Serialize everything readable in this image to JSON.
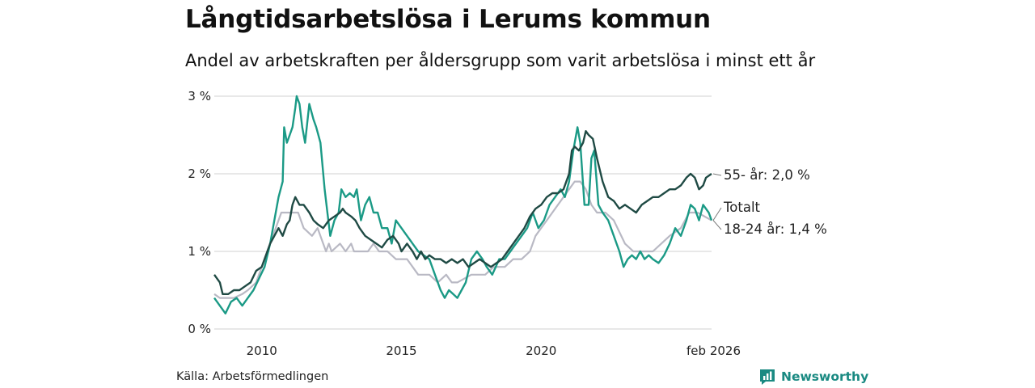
{
  "chart_data": {
    "type": "line",
    "title": "Långtidsarbetslösa i Lerums kommun",
    "subtitle": "Andel av arbetskraften per åldersgrupp som varit arbetslösa i minst ett år",
    "ylim": [
      0,
      3
    ],
    "y_ticks": [
      {
        "value": 0,
        "label": "0 %"
      },
      {
        "value": 1,
        "label": "1 %"
      },
      {
        "value": 2,
        "label": "2 %"
      },
      {
        "value": 3,
        "label": "3 %"
      }
    ],
    "x_range": [
      2008.3,
      2026.1
    ],
    "x_ticks": [
      {
        "value": 2010,
        "label": "2010"
      },
      {
        "value": 2015,
        "label": "2015"
      },
      {
        "value": 2020,
        "label": "2020"
      },
      {
        "value": 2026.1,
        "label": "feb 2026"
      }
    ],
    "grid": true,
    "series": [
      {
        "name": "Totalt",
        "end_label": "Totalt",
        "color": "#b9b9c4",
        "points": [
          [
            2008.3,
            0.45
          ],
          [
            2008.5,
            0.4
          ],
          [
            2009,
            0.4
          ],
          [
            2009.3,
            0.45
          ],
          [
            2009.5,
            0.5
          ],
          [
            2009.8,
            0.6
          ],
          [
            2010,
            0.8
          ],
          [
            2010.2,
            1.0
          ],
          [
            2010.3,
            1.1
          ],
          [
            2010.5,
            1.3
          ],
          [
            2010.7,
            1.5
          ],
          [
            2011,
            1.5
          ],
          [
            2011.3,
            1.5
          ],
          [
            2011.5,
            1.3
          ],
          [
            2011.8,
            1.2
          ],
          [
            2012,
            1.3
          ],
          [
            2012.2,
            1.1
          ],
          [
            2012.3,
            1.0
          ],
          [
            2012.4,
            1.1
          ],
          [
            2012.5,
            1.0
          ],
          [
            2012.8,
            1.1
          ],
          [
            2013,
            1.0
          ],
          [
            2013.2,
            1.1
          ],
          [
            2013.3,
            1.0
          ],
          [
            2013.8,
            1.0
          ],
          [
            2014,
            1.1
          ],
          [
            2014.2,
            1.0
          ],
          [
            2014.5,
            1.0
          ],
          [
            2014.8,
            0.9
          ],
          [
            2015,
            0.9
          ],
          [
            2015.2,
            0.9
          ],
          [
            2015.4,
            0.8
          ],
          [
            2015.6,
            0.7
          ],
          [
            2016,
            0.7
          ],
          [
            2016.3,
            0.6
          ],
          [
            2016.6,
            0.7
          ],
          [
            2016.8,
            0.6
          ],
          [
            2017,
            0.6
          ],
          [
            2017.5,
            0.7
          ],
          [
            2018,
            0.7
          ],
          [
            2018.3,
            0.8
          ],
          [
            2018.7,
            0.8
          ],
          [
            2019,
            0.9
          ],
          [
            2019.3,
            0.9
          ],
          [
            2019.6,
            1.0
          ],
          [
            2019.8,
            1.2
          ],
          [
            2020,
            1.3
          ],
          [
            2020.2,
            1.4
          ],
          [
            2020.4,
            1.5
          ],
          [
            2020.6,
            1.6
          ],
          [
            2020.8,
            1.7
          ],
          [
            2021,
            1.8
          ],
          [
            2021.2,
            1.9
          ],
          [
            2021.4,
            1.9
          ],
          [
            2021.6,
            1.8
          ],
          [
            2021.8,
            1.6
          ],
          [
            2022,
            1.5
          ],
          [
            2022.3,
            1.5
          ],
          [
            2022.6,
            1.4
          ],
          [
            2023,
            1.1
          ],
          [
            2023.3,
            1.0
          ],
          [
            2023.6,
            1.0
          ],
          [
            2024,
            1.0
          ],
          [
            2024.3,
            1.1
          ],
          [
            2024.6,
            1.2
          ],
          [
            2025,
            1.3
          ],
          [
            2025.3,
            1.5
          ],
          [
            2025.6,
            1.5
          ],
          [
            2026.1,
            1.4
          ]
        ]
      },
      {
        "name": "18-24 år",
        "end_label": "18-24 år: 1,4 %",
        "color": "#1b9a86",
        "points": [
          [
            2008.3,
            0.4
          ],
          [
            2008.5,
            0.3
          ],
          [
            2008.7,
            0.2
          ],
          [
            2008.9,
            0.35
          ],
          [
            2009.1,
            0.4
          ],
          [
            2009.3,
            0.3
          ],
          [
            2009.5,
            0.4
          ],
          [
            2009.7,
            0.5
          ],
          [
            2009.9,
            0.65
          ],
          [
            2010.1,
            0.8
          ],
          [
            2010.3,
            1.1
          ],
          [
            2010.5,
            1.5
          ],
          [
            2010.6,
            1.7
          ],
          [
            2010.75,
            1.9
          ],
          [
            2010.8,
            2.6
          ],
          [
            2010.9,
            2.4
          ],
          [
            2011,
            2.5
          ],
          [
            2011.1,
            2.6
          ],
          [
            2011.2,
            2.85
          ],
          [
            2011.25,
            3.0
          ],
          [
            2011.35,
            2.9
          ],
          [
            2011.45,
            2.6
          ],
          [
            2011.55,
            2.4
          ],
          [
            2011.7,
            2.9
          ],
          [
            2011.85,
            2.7
          ],
          [
            2011.95,
            2.6
          ],
          [
            2012.1,
            2.4
          ],
          [
            2012.25,
            1.8
          ],
          [
            2012.35,
            1.5
          ],
          [
            2012.45,
            1.2
          ],
          [
            2012.6,
            1.4
          ],
          [
            2012.75,
            1.5
          ],
          [
            2012.85,
            1.8
          ],
          [
            2013,
            1.7
          ],
          [
            2013.15,
            1.75
          ],
          [
            2013.3,
            1.7
          ],
          [
            2013.4,
            1.8
          ],
          [
            2013.55,
            1.4
          ],
          [
            2013.7,
            1.6
          ],
          [
            2013.85,
            1.7
          ],
          [
            2014,
            1.5
          ],
          [
            2014.15,
            1.5
          ],
          [
            2014.3,
            1.3
          ],
          [
            2014.5,
            1.3
          ],
          [
            2014.65,
            1.1
          ],
          [
            2014.8,
            1.4
          ],
          [
            2015,
            1.3
          ],
          [
            2015.2,
            1.2
          ],
          [
            2015.4,
            1.1
          ],
          [
            2015.6,
            1.0
          ],
          [
            2015.8,
            0.95
          ],
          [
            2016,
            0.9
          ],
          [
            2016.2,
            0.7
          ],
          [
            2016.4,
            0.5
          ],
          [
            2016.55,
            0.4
          ],
          [
            2016.7,
            0.5
          ],
          [
            2016.85,
            0.45
          ],
          [
            2017,
            0.4
          ],
          [
            2017.15,
            0.5
          ],
          [
            2017.3,
            0.6
          ],
          [
            2017.5,
            0.9
          ],
          [
            2017.7,
            1.0
          ],
          [
            2017.9,
            0.9
          ],
          [
            2018.05,
            0.8
          ],
          [
            2018.25,
            0.7
          ],
          [
            2018.5,
            0.9
          ],
          [
            2018.7,
            0.9
          ],
          [
            2018.9,
            1.0
          ],
          [
            2019.1,
            1.1
          ],
          [
            2019.3,
            1.2
          ],
          [
            2019.5,
            1.3
          ],
          [
            2019.7,
            1.5
          ],
          [
            2019.9,
            1.3
          ],
          [
            2020.1,
            1.4
          ],
          [
            2020.3,
            1.6
          ],
          [
            2020.5,
            1.7
          ],
          [
            2020.7,
            1.8
          ],
          [
            2020.85,
            1.7
          ],
          [
            2021,
            1.9
          ],
          [
            2021.15,
            2.3
          ],
          [
            2021.3,
            2.6
          ],
          [
            2021.4,
            2.4
          ],
          [
            2021.55,
            1.6
          ],
          [
            2021.7,
            1.6
          ],
          [
            2021.8,
            2.2
          ],
          [
            2021.9,
            2.3
          ],
          [
            2022.05,
            1.6
          ],
          [
            2022.2,
            1.5
          ],
          [
            2022.4,
            1.4
          ],
          [
            2022.6,
            1.2
          ],
          [
            2022.8,
            1.0
          ],
          [
            2022.95,
            0.8
          ],
          [
            2023.1,
            0.9
          ],
          [
            2023.25,
            0.95
          ],
          [
            2023.4,
            0.9
          ],
          [
            2023.55,
            1.0
          ],
          [
            2023.7,
            0.9
          ],
          [
            2023.85,
            0.95
          ],
          [
            2024,
            0.9
          ],
          [
            2024.2,
            0.85
          ],
          [
            2024.4,
            0.95
          ],
          [
            2024.6,
            1.1
          ],
          [
            2024.8,
            1.3
          ],
          [
            2025,
            1.2
          ],
          [
            2025.2,
            1.4
          ],
          [
            2025.35,
            1.6
          ],
          [
            2025.5,
            1.55
          ],
          [
            2025.65,
            1.4
          ],
          [
            2025.8,
            1.6
          ],
          [
            2026,
            1.5
          ],
          [
            2026.1,
            1.4
          ]
        ]
      },
      {
        "name": "55- år",
        "end_label": "55- år: 2,0 %",
        "color": "#1f4a44",
        "points": [
          [
            2008.3,
            0.7
          ],
          [
            2008.5,
            0.6
          ],
          [
            2008.6,
            0.45
          ],
          [
            2008.8,
            0.45
          ],
          [
            2009,
            0.5
          ],
          [
            2009.2,
            0.5
          ],
          [
            2009.4,
            0.55
          ],
          [
            2009.6,
            0.6
          ],
          [
            2009.8,
            0.75
          ],
          [
            2010,
            0.8
          ],
          [
            2010.2,
            1.0
          ],
          [
            2010.3,
            1.1
          ],
          [
            2010.45,
            1.2
          ],
          [
            2010.6,
            1.3
          ],
          [
            2010.75,
            1.2
          ],
          [
            2010.9,
            1.35
          ],
          [
            2011,
            1.4
          ],
          [
            2011.1,
            1.6
          ],
          [
            2011.2,
            1.7
          ],
          [
            2011.35,
            1.6
          ],
          [
            2011.5,
            1.6
          ],
          [
            2011.7,
            1.5
          ],
          [
            2011.85,
            1.4
          ],
          [
            2012,
            1.35
          ],
          [
            2012.2,
            1.3
          ],
          [
            2012.4,
            1.4
          ],
          [
            2012.6,
            1.45
          ],
          [
            2012.8,
            1.5
          ],
          [
            2012.9,
            1.55
          ],
          [
            2013,
            1.5
          ],
          [
            2013.2,
            1.45
          ],
          [
            2013.35,
            1.4
          ],
          [
            2013.5,
            1.3
          ],
          [
            2013.7,
            1.2
          ],
          [
            2013.9,
            1.15
          ],
          [
            2014.1,
            1.1
          ],
          [
            2014.3,
            1.05
          ],
          [
            2014.5,
            1.15
          ],
          [
            2014.7,
            1.2
          ],
          [
            2014.9,
            1.1
          ],
          [
            2015,
            1.0
          ],
          [
            2015.2,
            1.1
          ],
          [
            2015.4,
            1.0
          ],
          [
            2015.55,
            0.9
          ],
          [
            2015.7,
            1.0
          ],
          [
            2015.85,
            0.9
          ],
          [
            2016,
            0.95
          ],
          [
            2016.2,
            0.9
          ],
          [
            2016.4,
            0.9
          ],
          [
            2016.6,
            0.85
          ],
          [
            2016.8,
            0.9
          ],
          [
            2017,
            0.85
          ],
          [
            2017.2,
            0.9
          ],
          [
            2017.4,
            0.8
          ],
          [
            2017.6,
            0.85
          ],
          [
            2017.8,
            0.9
          ],
          [
            2018,
            0.85
          ],
          [
            2018.2,
            0.8
          ],
          [
            2018.4,
            0.85
          ],
          [
            2018.6,
            0.9
          ],
          [
            2018.8,
            1.0
          ],
          [
            2019,
            1.1
          ],
          [
            2019.2,
            1.2
          ],
          [
            2019.4,
            1.3
          ],
          [
            2019.6,
            1.45
          ],
          [
            2019.8,
            1.55
          ],
          [
            2020,
            1.6
          ],
          [
            2020.2,
            1.7
          ],
          [
            2020.4,
            1.75
          ],
          [
            2020.6,
            1.75
          ],
          [
            2020.8,
            1.8
          ],
          [
            2021,
            2.0
          ],
          [
            2021.1,
            2.3
          ],
          [
            2021.2,
            2.35
          ],
          [
            2021.35,
            2.3
          ],
          [
            2021.5,
            2.4
          ],
          [
            2021.6,
            2.55
          ],
          [
            2021.7,
            2.5
          ],
          [
            2021.85,
            2.45
          ],
          [
            2022,
            2.2
          ],
          [
            2022.2,
            1.9
          ],
          [
            2022.4,
            1.7
          ],
          [
            2022.6,
            1.65
          ],
          [
            2022.8,
            1.55
          ],
          [
            2023,
            1.6
          ],
          [
            2023.2,
            1.55
          ],
          [
            2023.4,
            1.5
          ],
          [
            2023.6,
            1.6
          ],
          [
            2023.8,
            1.65
          ],
          [
            2024,
            1.7
          ],
          [
            2024.2,
            1.7
          ],
          [
            2024.4,
            1.75
          ],
          [
            2024.6,
            1.8
          ],
          [
            2024.8,
            1.8
          ],
          [
            2025,
            1.85
          ],
          [
            2025.2,
            1.95
          ],
          [
            2025.35,
            2.0
          ],
          [
            2025.5,
            1.95
          ],
          [
            2025.65,
            1.8
          ],
          [
            2025.8,
            1.85
          ],
          [
            2025.9,
            1.95
          ],
          [
            2026.1,
            2.0
          ]
        ]
      }
    ]
  },
  "footer": {
    "source": "Källa: Arbetsförmedlingen",
    "brand": "Newsworthy"
  },
  "colors": {
    "grid": "#d9d9d9",
    "brand": "#1a8a82"
  }
}
